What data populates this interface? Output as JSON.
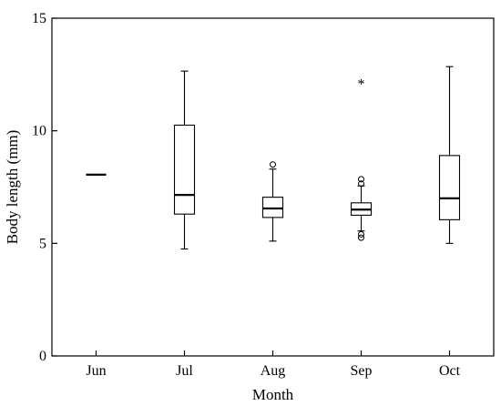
{
  "chart_data": {
    "type": "box",
    "xlabel": "Month",
    "ylabel": "Body length (mm)",
    "ylim": [
      0,
      15
    ],
    "yticks": [
      0,
      5,
      10,
      15
    ],
    "categories": [
      "Jun",
      "Jul",
      "Aug",
      "Sep",
      "Oct"
    ],
    "boxes": [
      {
        "category": "Jun",
        "min": 8.05,
        "q1": 8.05,
        "median": 8.05,
        "q3": 8.05,
        "max": 8.05,
        "outliers": [],
        "extremes": []
      },
      {
        "category": "Jul",
        "min": 4.75,
        "q1": 6.3,
        "median": 7.15,
        "q3": 10.25,
        "max": 12.65,
        "outliers": [],
        "extremes": []
      },
      {
        "category": "Aug",
        "min": 5.1,
        "q1": 6.15,
        "median": 6.55,
        "q3": 7.05,
        "max": 8.3,
        "outliers": [
          8.5
        ],
        "extremes": []
      },
      {
        "category": "Sep",
        "min": 5.55,
        "q1": 6.25,
        "median": 6.5,
        "q3": 6.8,
        "max": 7.55,
        "outliers": [
          7.65,
          7.85,
          5.4,
          5.25
        ],
        "extremes": [
          12.2
        ]
      },
      {
        "category": "Oct",
        "min": 5.0,
        "q1": 6.05,
        "median": 7.0,
        "q3": 8.9,
        "max": 12.85,
        "outliers": [],
        "extremes": []
      }
    ],
    "grid": false,
    "legend": "none"
  }
}
